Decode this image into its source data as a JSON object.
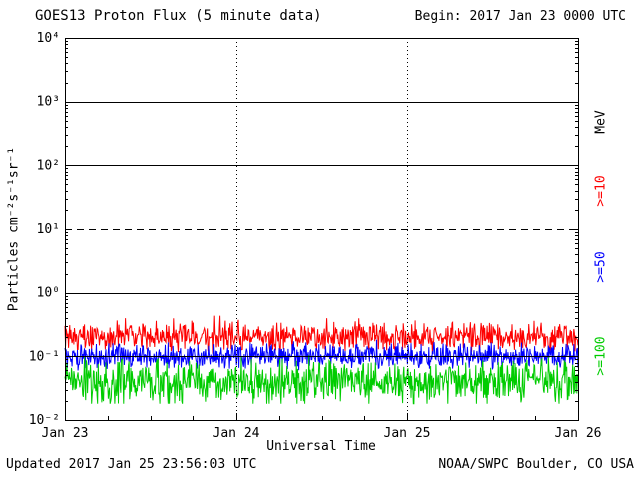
{
  "header": {
    "title": "GOES13 Proton Flux (5 minute data)",
    "begin_label": "Begin: 2017 Jan 23 0000 UTC"
  },
  "footer": {
    "updated": "Updated 2017 Jan 25 23:56:03 UTC",
    "source": "NOAA/SWPC Boulder, CO USA"
  },
  "chart_data": {
    "type": "line",
    "title": "GOES13 Proton Flux (5 minute data)",
    "xlabel": "Universal Time",
    "ylabel": "Particles cm⁻²s⁻¹sr⁻¹",
    "begin": "2017 Jan 23 0000 UTC",
    "x_ticks": [
      "Jan 23",
      "Jan 24",
      "Jan 25",
      "Jan 26"
    ],
    "x_range_days": 3,
    "cadence_minutes": 5,
    "y_scale": "log10",
    "ylim": [
      0.01,
      10000
    ],
    "y_tick_labels": [
      "10⁴",
      "10³",
      "10²",
      "10¹",
      "10⁰",
      "10⁻¹",
      "10⁻²"
    ],
    "y_tick_exponents": [
      4,
      3,
      2,
      1,
      0,
      -1,
      -2
    ],
    "threshold_dashed_line_at": 10,
    "grid": "solid horizontal line at each decade, dashed at 10^1, dotted vertical lines at day boundaries",
    "right_axis_unit": "MeV",
    "series": [
      {
        "name": ">=10 MeV",
        "label": ">=10",
        "color": "#fe0000",
        "approx_flux_range": [
          0.11,
          0.38
        ],
        "approx_mean_flux": 0.17
      },
      {
        "name": ">=50 MeV",
        "label": ">=50",
        "color": "#0000fe",
        "approx_flux_range": [
          0.06,
          0.17
        ],
        "approx_mean_flux": 0.1
      },
      {
        "name": ">=100 MeV",
        "label": ">=100",
        "color": "#00cc00",
        "approx_flux_range": [
          0.018,
          0.105
        ],
        "approx_mean_flux": 0.045
      }
    ]
  }
}
